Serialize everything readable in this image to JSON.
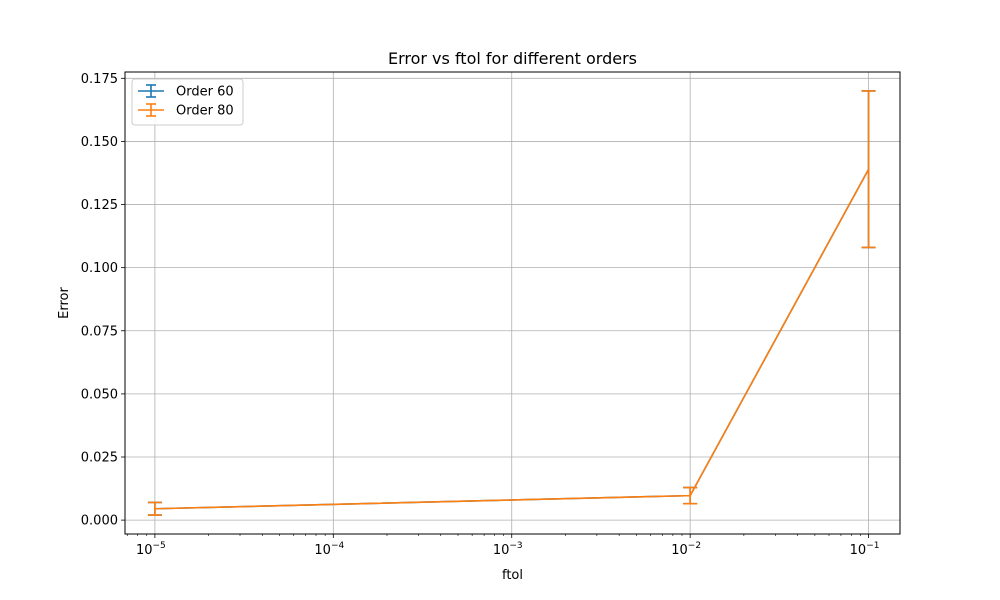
{
  "chart_data": {
    "type": "line",
    "title": "Error vs ftol for different orders",
    "xlabel": "ftol",
    "ylabel": "Error",
    "xscale": "log",
    "x": [
      1e-05,
      0.01,
      0.1
    ],
    "xlim": [
      6.8e-06,
      0.15
    ],
    "ylim": [
      -0.0055,
      0.1775
    ],
    "x_ticks": [
      1e-05,
      0.0001,
      0.001,
      0.01,
      0.1
    ],
    "x_tick_labels": [
      {
        "base": "10",
        "exp": "−5"
      },
      {
        "base": "10",
        "exp": "−4"
      },
      {
        "base": "10",
        "exp": "−3"
      },
      {
        "base": "10",
        "exp": "−2"
      },
      {
        "base": "10",
        "exp": "−1"
      }
    ],
    "y_ticks": [
      "0.000",
      "0.025",
      "0.050",
      "0.075",
      "0.100",
      "0.125",
      "0.150",
      "0.175"
    ],
    "grid": true,
    "legend_position": "top-left",
    "series": [
      {
        "name": "Order 60",
        "color": "#1f77b4",
        "values": [
          0.0045,
          0.0097,
          0.139
        ],
        "errors": [
          0.0025,
          0.0032,
          0.031
        ]
      },
      {
        "name": "Order 80",
        "color": "#ff7f0e",
        "values": [
          0.0045,
          0.0097,
          0.139
        ],
        "errors": [
          0.0025,
          0.0032,
          0.031
        ]
      }
    ]
  }
}
